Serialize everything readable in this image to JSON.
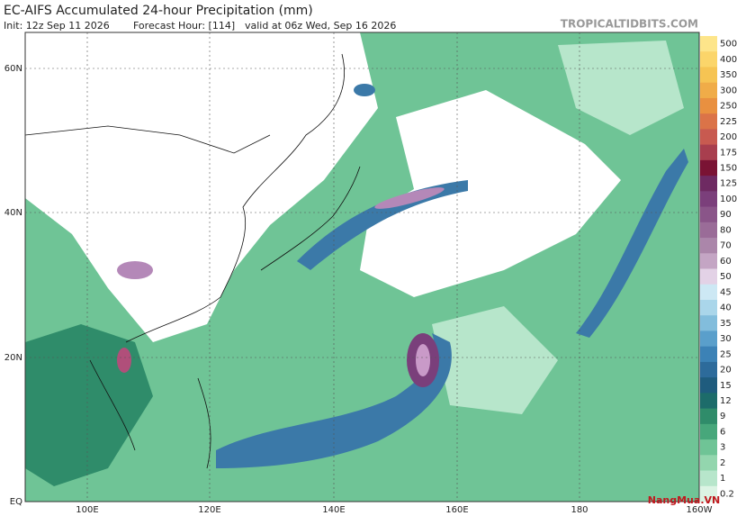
{
  "header": {
    "title": "EC-AIFS Accumulated 24-hour Precipitation (mm)",
    "init": "Init: 12z Sep 11 2026",
    "forecast_hour": "Forecast Hour: [114]",
    "valid": "valid at 06z Wed, Sep 16 2026",
    "site": "TROPICALTIDBITS.COM"
  },
  "map": {
    "lat_labels": [
      "60N",
      "40N",
      "20N",
      "EQ"
    ],
    "lon_labels": [
      "100E",
      "120E",
      "140E",
      "160E",
      "180",
      "160W"
    ]
  },
  "colorbar": {
    "labels": [
      "500",
      "400",
      "350",
      "300",
      "250",
      "225",
      "200",
      "175",
      "150",
      "125",
      "100",
      "90",
      "80",
      "70",
      "60",
      "50",
      "45",
      "40",
      "35",
      "30",
      "25",
      "20",
      "15",
      "12",
      "9",
      "6",
      "3",
      "2",
      "1",
      "0.2"
    ]
  },
  "watermark": "NangMua.VN"
}
